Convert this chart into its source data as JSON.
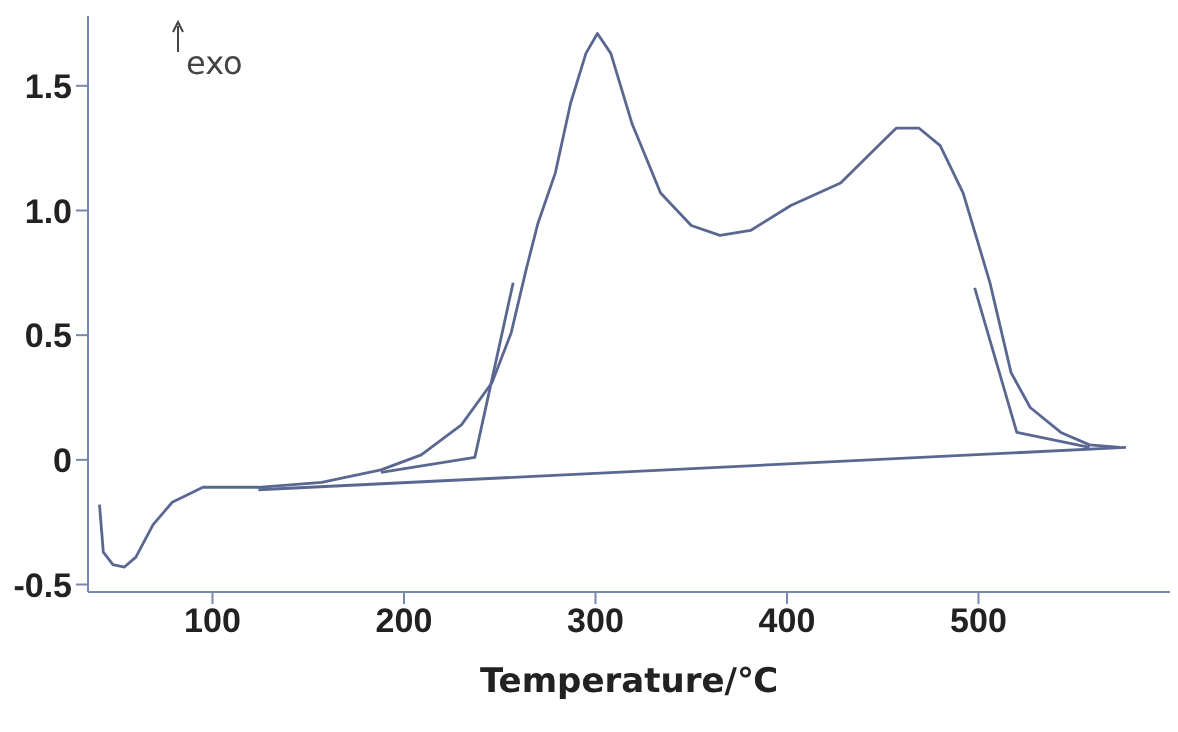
{
  "chart_data": {
    "type": "line",
    "xlabel": "Temperature/℃",
    "annotations": [
      "exo"
    ],
    "xlim": [
      35,
      600
    ],
    "xticks": [
      100,
      200,
      300,
      400,
      500
    ],
    "ylim": [
      -0.53,
      1.78
    ],
    "yticks": [
      -0.5,
      0,
      0.5,
      {
        "value": 1,
        "label": "1.0"
      },
      1.5
    ],
    "marker": "none",
    "line_style": "solid",
    "series": [
      {
        "color": "#5a6790",
        "x": [
          41,
          43,
          48,
          54,
          60,
          69,
          79,
          95,
          124,
          157,
          188,
          209,
          230,
          246,
          256,
          264,
          270,
          279,
          287,
          295,
          301,
          308,
          319,
          334,
          350,
          365,
          381,
          402,
          428,
          449,
          457,
          469,
          480,
          492,
          506,
          517,
          527,
          543,
          558,
          574
        ],
        "values": [
          -0.18,
          -0.37,
          -0.42,
          -0.43,
          -0.39,
          -0.26,
          -0.17,
          -0.11,
          -0.11,
          -0.09,
          -0.04,
          0.02,
          0.14,
          0.31,
          0.51,
          0.77,
          0.95,
          1.15,
          1.43,
          1.63,
          1.71,
          1.63,
          1.35,
          1.07,
          0.94,
          0.9,
          0.92,
          1.02,
          1.11,
          1.27,
          1.33,
          1.33,
          1.26,
          1.07,
          0.71,
          0.35,
          0.21,
          0.11,
          0.06,
          0.05
        ]
      },
      {
        "color": "#5a6790",
        "x": [
          124,
          577
        ],
        "values": [
          -0.12,
          0.05
        ]
      },
      {
        "color": "#5a6790",
        "x": [
          188,
          237,
          257
        ],
        "values": [
          -0.05,
          0.01,
          0.71
        ]
      },
      {
        "color": "#5a6790",
        "x": [
          498,
          520,
          558
        ],
        "values": [
          0.69,
          0.11,
          0.05
        ]
      }
    ]
  }
}
